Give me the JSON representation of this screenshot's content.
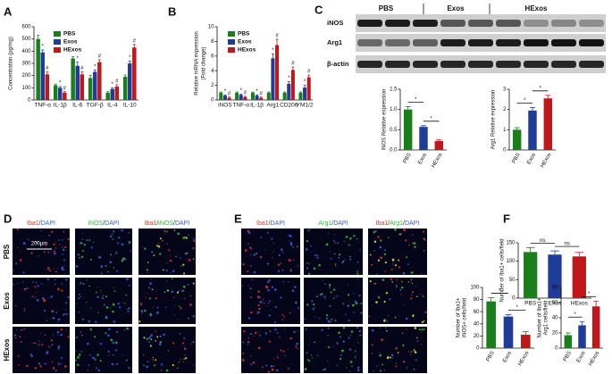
{
  "panels": {
    "labels": [
      "A",
      "B",
      "C",
      "D",
      "E",
      "F"
    ],
    "blot": {
      "groups": [
        "PBS",
        "Exos",
        "HExos"
      ],
      "rows": [
        "iNOS",
        "Arg1",
        "β-actin"
      ]
    },
    "microscopy": [
      {
        "columns": [
          [
            {
              "text": "Iba1",
              "color": "#e8312f"
            },
            {
              "text": "/",
              "color": "#ffffff"
            },
            {
              "text": "DAPI",
              "color": "#3b5bdb"
            }
          ],
          [
            {
              "text": "iNOS",
              "color": "#2fbf3a"
            },
            {
              "text": "/",
              "color": "#ffffff"
            },
            {
              "text": "DAPI",
              "color": "#3b5bdb"
            }
          ],
          [
            {
              "text": "Iba1",
              "color": "#e8312f"
            },
            {
              "text": "/",
              "color": "#ffffff"
            },
            {
              "text": "iNOS",
              "color": "#2fbf3a"
            },
            {
              "text": "/",
              "color": "#ffffff"
            },
            {
              "text": "DAPI",
              "color": "#3b5bdb"
            }
          ]
        ],
        "rows": [
          "PBS",
          "Exos",
          "HExos"
        ],
        "scale_bar": "200μm"
      },
      {
        "columns": [
          [
            {
              "text": "Iba1",
              "color": "#e8312f"
            },
            {
              "text": "/",
              "color": "#ffffff"
            },
            {
              "text": "DAPI",
              "color": "#3b5bdb"
            }
          ],
          [
            {
              "text": "Arg1",
              "color": "#2fbf3a"
            },
            {
              "text": "/",
              "color": "#ffffff"
            },
            {
              "text": "DAPI",
              "color": "#3b5bdb"
            }
          ],
          [
            {
              "text": "Iba1",
              "color": "#e8312f"
            },
            {
              "text": "/",
              "color": "#ffffff"
            },
            {
              "text": "Arg1",
              "color": "#2fbf3a"
            },
            {
              "text": "/",
              "color": "#ffffff"
            },
            {
              "text": "DAPI",
              "color": "#3b5bdb"
            }
          ]
        ]
      }
    ]
  },
  "chart_data": [
    {
      "type": "bar",
      "ylabel": "Concentration (pg/mg)",
      "categories": [
        "TNF-α",
        "IL-1β",
        "IL-6",
        "TGF-β",
        "IL-4",
        "IL-10"
      ],
      "series": [
        {
          "name": "PBS",
          "color": "#1a7f1a",
          "values": [
            500,
            120,
            340,
            180,
            60,
            190
          ],
          "errors": [
            30,
            8,
            15,
            20,
            8,
            15
          ]
        },
        {
          "name": "Exos",
          "color": "#1f3c99",
          "values": [
            390,
            100,
            280,
            230,
            90,
            300
          ],
          "errors": [
            20,
            10,
            30,
            15,
            10,
            20
          ],
          "annotations": [
            "*",
            "*",
            "*",
            "*",
            "*",
            "*"
          ]
        },
        {
          "name": "HExos",
          "color": "#c0171b",
          "values": [
            210,
            60,
            210,
            310,
            110,
            430
          ],
          "errors": [
            20,
            8,
            20,
            20,
            15,
            25
          ],
          "annotations": [
            "#",
            "#",
            "#",
            "#",
            "#",
            "#"
          ]
        }
      ],
      "ylim": [
        0,
        600
      ],
      "yticks": [
        0,
        100,
        200,
        300,
        400,
        500,
        600
      ],
      "legend": "top-left"
    },
    {
      "type": "bar",
      "ylabel": [
        "Relative mRNA expression",
        "(Fold change)"
      ],
      "categories": [
        "iNOS",
        "TNF-α",
        "IL-1β",
        "Arg1",
        "CD206",
        "YM1/2"
      ],
      "series": [
        {
          "name": "PBS",
          "color": "#1a7f1a",
          "values": [
            1,
            1,
            1,
            1,
            1,
            1
          ],
          "errors": [
            0.1,
            0.1,
            0.1,
            0.1,
            0.1,
            0.1
          ]
        },
        {
          "name": "Exos",
          "color": "#1f3c99",
          "values": [
            0.6,
            0.7,
            0.6,
            5.7,
            2.2,
            1.7
          ],
          "errors": [
            0.1,
            0.1,
            0.1,
            0.6,
            0.3,
            0.3
          ],
          "annotations": [
            "*",
            "*",
            "*",
            "*",
            "*",
            "*"
          ]
        },
        {
          "name": "HExos",
          "color": "#c0171b",
          "values": [
            0.3,
            0.4,
            0.3,
            7.5,
            4.1,
            3.1
          ],
          "errors": [
            0.1,
            0.1,
            0.1,
            0.8,
            0.4,
            0.3
          ],
          "annotations": [
            "#",
            "#",
            "#",
            "#",
            "#",
            "#"
          ]
        }
      ],
      "ylim": [
        0,
        10
      ],
      "yticks": [
        0,
        2,
        4,
        6,
        8,
        10
      ],
      "legend": "top-left"
    },
    {
      "type": "bar",
      "ylabel": "iNOS Relative expression",
      "categories": [
        "PBS",
        "Exos",
        "HExos"
      ],
      "values": [
        1.0,
        0.57,
        0.22
      ],
      "errors": [
        0.07,
        0.03,
        0.03
      ],
      "colors": [
        "#1a7f1a",
        "#1f3c99",
        "#c0171b"
      ],
      "ylim": [
        0,
        1.5
      ],
      "yticks": [
        {
          "value": 0,
          "label": "0.0"
        },
        0.5,
        {
          "value": 1,
          "label": "1.0"
        },
        1.5
      ],
      "brackets": [
        "*",
        "*"
      ]
    },
    {
      "type": "bar",
      "ylabel": "Arg1 Relative expression",
      "categories": [
        "PBS",
        "Exos",
        "HExos"
      ],
      "values": [
        1.0,
        1.95,
        2.55
      ],
      "errors": [
        0.1,
        0.15,
        0.15
      ],
      "colors": [
        "#1a7f1a",
        "#1f3c99",
        "#c0171b"
      ],
      "ylim": [
        0,
        3
      ],
      "yticks": [
        0,
        1,
        2,
        3
      ],
      "brackets": [
        "*",
        "*"
      ]
    },
    {
      "type": "bar",
      "ylabel": "Number of Iba1+ cells/field",
      "categories": [
        "PBS",
        "Exos",
        "HExos"
      ],
      "values": [
        125,
        118,
        113
      ],
      "errors": [
        12,
        10,
        11
      ],
      "colors": [
        "#1a7f1a",
        "#1f3c99",
        "#c0171b"
      ],
      "ylim": [
        0,
        150
      ],
      "yticks": [
        0,
        50,
        100,
        150
      ],
      "brackets": [
        "ns",
        "ns"
      ]
    },
    {
      "type": "bar",
      "ylabel": [
        "Number of Iba1+",
        "iNOS+ cells/field"
      ],
      "categories": [
        "PBS",
        "Exos",
        "HExos"
      ],
      "values": [
        77,
        52,
        22
      ],
      "errors": [
        6,
        3,
        5
      ],
      "colors": [
        "#1a7f1a",
        "#1f3c99",
        "#c0171b"
      ],
      "ylim": [
        0,
        100
      ],
      "yticks": [
        0,
        20,
        40,
        60,
        80,
        100
      ],
      "brackets": [
        "*",
        "*"
      ]
    },
    {
      "type": "bar",
      "ylabel": [
        "Number of Iba1+",
        "Arg1 cells/field"
      ],
      "categories": [
        "PBS",
        "Exos",
        "HExos"
      ],
      "values": [
        17,
        30,
        55
      ],
      "errors": [
        3,
        5,
        7
      ],
      "colors": [
        "#1a7f1a",
        "#1f3c99",
        "#c0171b"
      ],
      "ylim": [
        0,
        80
      ],
      "yticks": [
        0,
        20,
        40,
        60,
        80
      ],
      "brackets": [
        "*",
        "*"
      ]
    }
  ]
}
